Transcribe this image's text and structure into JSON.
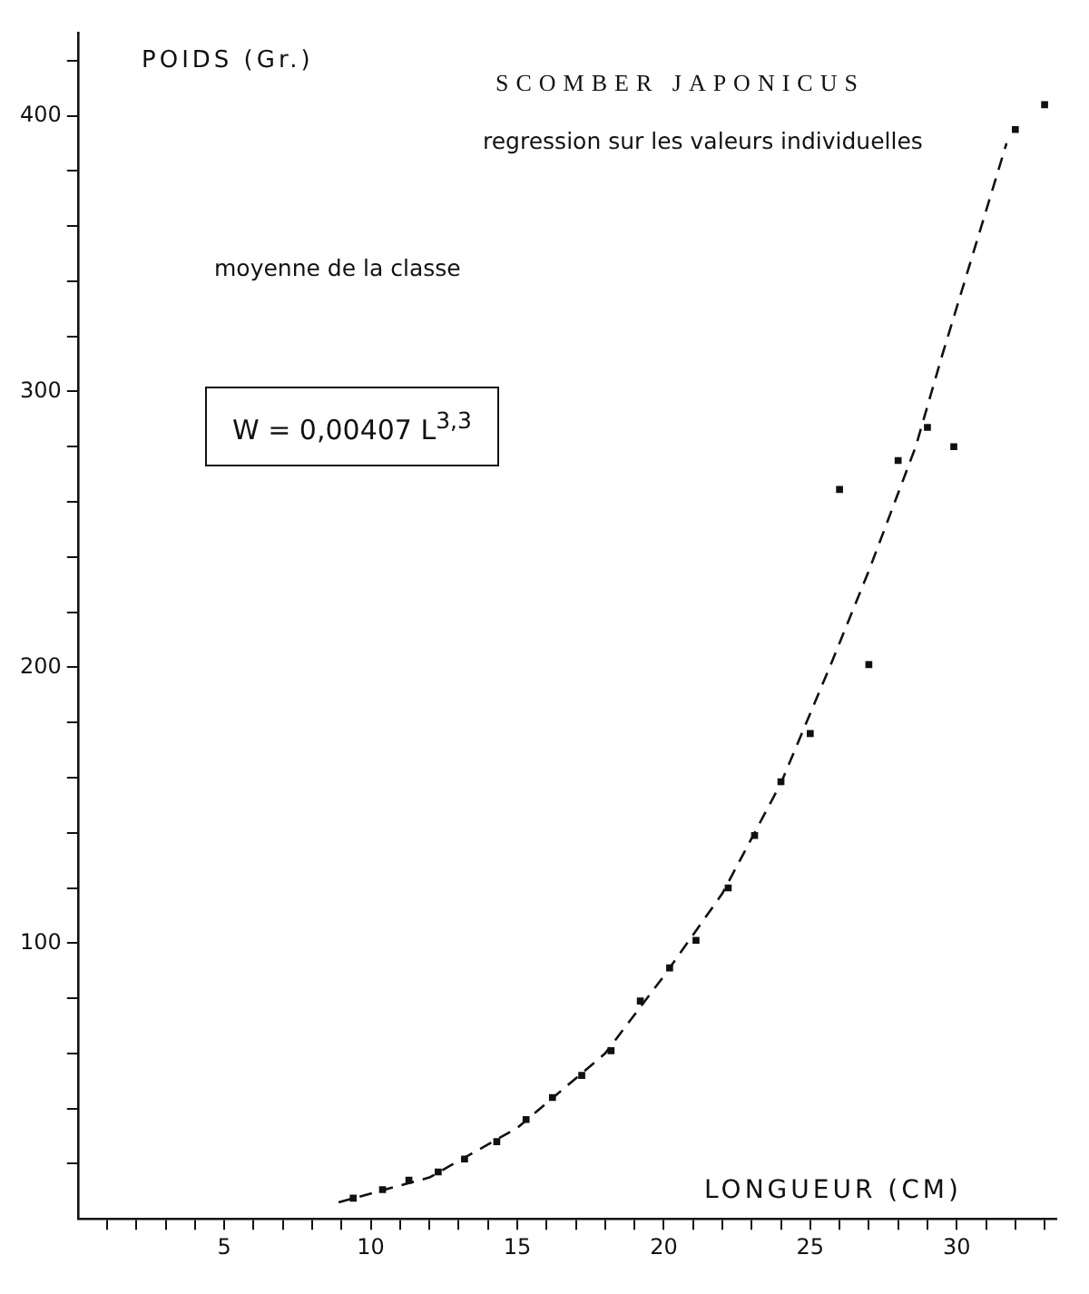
{
  "chart_data": {
    "type": "scatter",
    "title": "SCOMBER JAPONICUS",
    "subtitle": "regression sur les valeurs individuelles",
    "xlabel": "LONGUEUR (CM)",
    "ylabel": "POIDS (Gr.)",
    "annotations": [
      "moyenne de la classe",
      "W = 0,00407 L$^{3,3}$"
    ],
    "xlim": [
      0,
      33.4
    ],
    "ylim": [
      0,
      430
    ],
    "xticks": [
      {
        "value": 1,
        "label": null
      },
      {
        "value": 2,
        "label": null
      },
      {
        "value": 3,
        "label": null
      },
      {
        "value": 4,
        "label": null
      },
      5,
      {
        "value": 6,
        "label": null
      },
      {
        "value": 7,
        "label": null
      },
      {
        "value": 8,
        "label": null
      },
      {
        "value": 9,
        "label": null
      },
      10,
      {
        "value": 11,
        "label": null
      },
      {
        "value": 12,
        "label": null
      },
      {
        "value": 13,
        "label": null
      },
      {
        "value": 14,
        "label": null
      },
      15,
      {
        "value": 16,
        "label": null
      },
      {
        "value": 17,
        "label": null
      },
      {
        "value": 18,
        "label": null
      },
      {
        "value": 19,
        "label": null
      },
      20,
      {
        "value": 21,
        "label": null
      },
      {
        "value": 22,
        "label": null
      },
      {
        "value": 23,
        "label": null
      },
      {
        "value": 24,
        "label": null
      },
      25,
      {
        "value": 26,
        "label": null
      },
      {
        "value": 27,
        "label": null
      },
      {
        "value": 28,
        "label": null
      },
      {
        "value": 29,
        "label": null
      },
      30,
      {
        "value": 31,
        "label": null
      },
      {
        "value": 32,
        "label": null
      },
      {
        "value": 33,
        "label": null
      }
    ],
    "yticks": [
      {
        "value": 20,
        "label": null
      },
      {
        "value": 40,
        "label": null
      },
      {
        "value": 60,
        "label": null
      },
      {
        "value": 80,
        "label": null
      },
      100,
      {
        "value": 120,
        "label": null
      },
      {
        "value": 140,
        "label": null
      },
      {
        "value": 160,
        "label": null
      },
      {
        "value": 180,
        "label": null
      },
      200,
      {
        "value": 220,
        "label": null
      },
      {
        "value": 240,
        "label": null
      },
      {
        "value": 260,
        "label": null
      },
      {
        "value": 280,
        "label": null
      },
      300,
      {
        "value": 320,
        "label": null
      },
      {
        "value": 340,
        "label": null
      },
      {
        "value": 360,
        "label": null
      },
      {
        "value": 380,
        "label": null
      },
      400,
      {
        "value": 420,
        "label": null
      }
    ],
    "grid": false,
    "legend": false,
    "series": [
      {
        "type": "scatter",
        "marker": "square",
        "color": "#111111",
        "x": [
          9.4,
          10.4,
          11.3,
          12.3,
          13.2,
          14.3,
          15.3,
          16.2,
          17.2,
          18.2,
          19.2,
          20.2,
          21.1,
          22.2,
          23.1,
          24.0,
          25.0,
          26.0,
          27.0,
          28.0,
          29.0,
          29.9,
          32.0,
          33.0
        ],
        "values": [
          7.5,
          10.6,
          14,
          17,
          21.7,
          28,
          36,
          44,
          52,
          61,
          79,
          91,
          101,
          120,
          139,
          158.5,
          176,
          264.5,
          201,
          275,
          287,
          280,
          395,
          404
        ]
      },
      {
        "type": "line",
        "marker": "none",
        "line_style": "dashed",
        "color": "#111111",
        "x": [
          8.9,
          12,
          15,
          18,
          20,
          22,
          24,
          25.7,
          27,
          28.6,
          29.5,
          31.7
        ],
        "values": [
          6,
          15,
          33,
          60,
          88,
          118,
          158,
          201,
          235,
          280,
          313,
          390
        ]
      }
    ]
  }
}
